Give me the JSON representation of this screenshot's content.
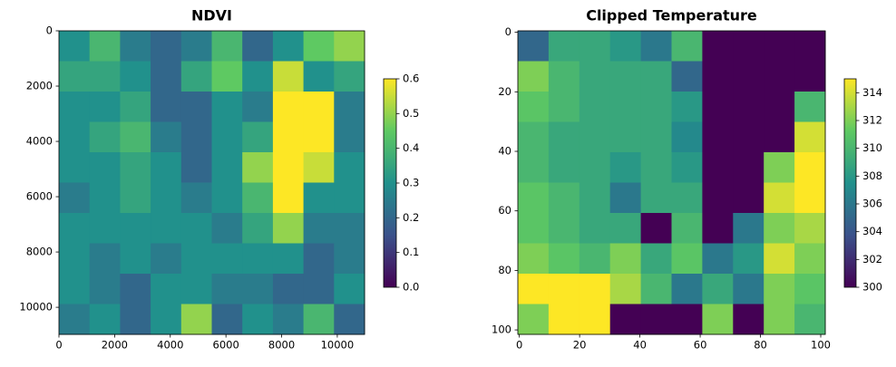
{
  "chart_data": [
    {
      "type": "heatmap",
      "title": "NDVI",
      "cmap": "viridis",
      "xlim": [
        0,
        10980
      ],
      "ylim": [
        10980,
        0
      ],
      "xticks": [
        0,
        2000,
        4000,
        6000,
        8000,
        10000
      ],
      "yticks": [
        0,
        2000,
        4000,
        6000,
        8000,
        10000
      ],
      "clim": [
        0,
        0.6
      ],
      "cticks": [
        {
          "value": 0,
          "label": "0.0"
        },
        0.1,
        0.2,
        0.3,
        0.4,
        0.5,
        0.6
      ],
      "values": [
        [
          0.3,
          0.4,
          0.25,
          0.2,
          0.25,
          0.4,
          0.2,
          0.3,
          0.45,
          0.5
        ],
        [
          0.35,
          0.35,
          0.3,
          0.2,
          0.35,
          0.45,
          0.3,
          0.55,
          0.3,
          0.35
        ],
        [
          0.3,
          0.3,
          0.35,
          0.2,
          0.2,
          0.3,
          0.25,
          0.6,
          0.6,
          0.25
        ],
        [
          0.3,
          0.35,
          0.4,
          0.25,
          0.2,
          0.3,
          0.35,
          0.6,
          0.6,
          0.25
        ],
        [
          0.3,
          0.3,
          0.35,
          0.3,
          0.2,
          0.3,
          0.5,
          0.6,
          0.55,
          0.3
        ],
        [
          0.25,
          0.3,
          0.35,
          0.3,
          0.25,
          0.3,
          0.4,
          0.6,
          0.3,
          0.3
        ],
        [
          0.3,
          0.3,
          0.3,
          0.3,
          0.3,
          0.25,
          0.35,
          0.5,
          0.25,
          0.25
        ],
        [
          0.3,
          0.25,
          0.3,
          0.25,
          0.3,
          0.3,
          0.3,
          0.3,
          0.2,
          0.25
        ],
        [
          0.3,
          0.25,
          0.2,
          0.3,
          0.3,
          0.25,
          0.25,
          0.2,
          0.2,
          0.3
        ],
        [
          0.25,
          0.3,
          0.2,
          0.3,
          0.5,
          0.2,
          0.3,
          0.25,
          0.4,
          0.2
        ]
      ]
    },
    {
      "type": "heatmap",
      "title": "Clipped Temperature",
      "cmap": "viridis",
      "xlim": [
        -0.5,
        101.5
      ],
      "ylim": [
        101.5,
        -0.5
      ],
      "xticks": [
        0,
        20,
        40,
        60,
        80,
        100
      ],
      "yticks": [
        0,
        20,
        40,
        60,
        80,
        100
      ],
      "clim": [
        300,
        315
      ],
      "cticks": [
        300,
        302,
        304,
        306,
        308,
        310,
        312,
        314
      ],
      "values": [
        [
          305,
          309,
          309,
          308,
          306,
          310,
          300,
          300,
          300,
          300
        ],
        [
          312,
          310,
          309,
          309,
          309,
          305,
          300,
          300,
          300,
          300
        ],
        [
          311,
          310,
          309,
          309,
          309,
          308,
          300,
          300,
          300,
          310
        ],
        [
          310,
          309,
          309,
          309,
          309,
          307,
          300,
          300,
          300,
          314
        ],
        [
          310,
          309,
          309,
          308,
          309,
          308,
          300,
          300,
          312,
          315
        ],
        [
          311,
          310,
          309,
          306,
          309,
          309,
          300,
          300,
          314,
          315
        ],
        [
          311,
          310,
          309,
          309,
          300,
          310,
          300,
          306,
          312,
          313
        ],
        [
          312,
          311,
          310,
          312,
          309,
          311,
          306,
          308,
          314,
          312
        ],
        [
          315,
          315,
          315,
          313,
          310,
          306,
          309,
          306,
          312,
          311
        ],
        [
          312,
          315,
          315,
          300,
          300,
          300,
          312,
          300,
          312,
          310
        ]
      ]
    }
  ]
}
